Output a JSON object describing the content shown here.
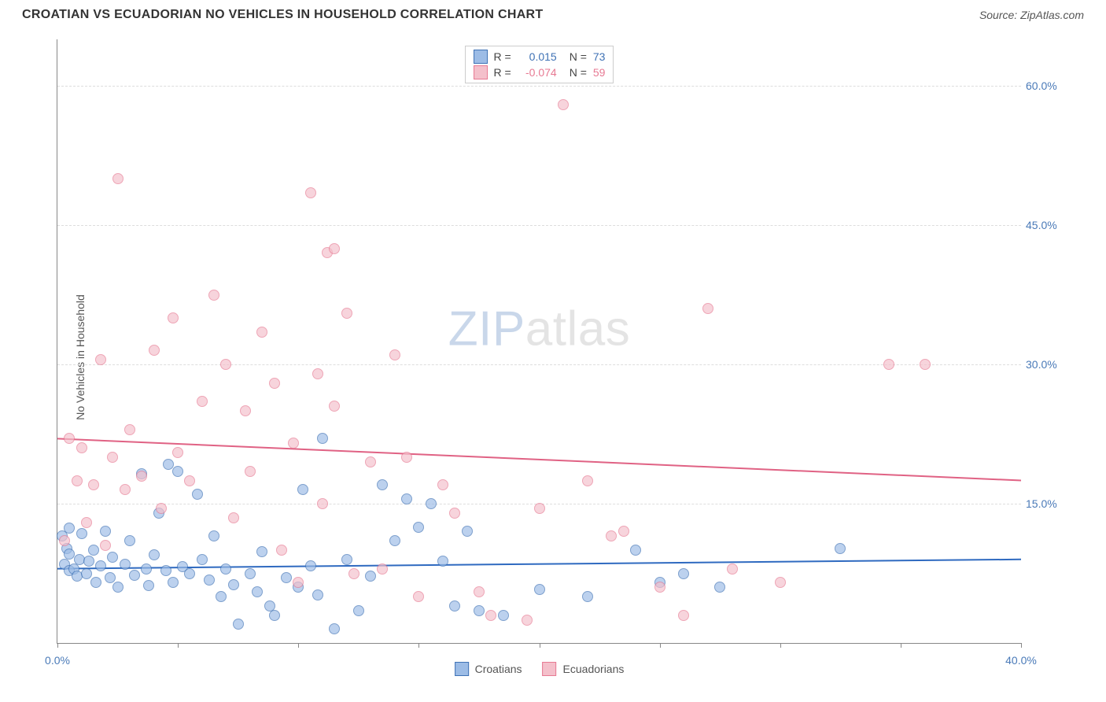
{
  "title": "CROATIAN VS ECUADORIAN NO VEHICLES IN HOUSEHOLD CORRELATION CHART",
  "source": "Source: ZipAtlas.com",
  "ylabel": "No Vehicles in Household",
  "watermark": {
    "zip": "ZIP",
    "atlas": "atlas"
  },
  "chart": {
    "type": "scatter",
    "background_color": "#ffffff",
    "grid_color": "#dddddd",
    "axis_color": "#888888",
    "tick_label_color": "#4a7ab8",
    "tick_fontsize": 14,
    "xlim": [
      0,
      40
    ],
    "ylim": [
      0,
      65
    ],
    "x_ticks": [
      0,
      5,
      10,
      15,
      20,
      25,
      30,
      35,
      40
    ],
    "x_tick_labels": {
      "0": "0.0%",
      "40": "40.0%"
    },
    "y_ticks": [
      15,
      30,
      45,
      60
    ],
    "y_tick_labels": {
      "15": "15.0%",
      "30": "30.0%",
      "45": "45.0%",
      "60": "60.0%"
    },
    "point_radius": 7,
    "point_opacity_fill": 0.32,
    "point_stroke_opacity": 0.9,
    "line_width": 2,
    "series": [
      {
        "name": "Croatians",
        "color_fill": "#9cbce6",
        "color_stroke": "#3f72b5",
        "trend": {
          "y_at_x0": 8.0,
          "y_at_xmax": 9.0,
          "color": "#2f6ac0"
        },
        "R_label": "R =",
        "R_value": "0.015",
        "N_label": "N =",
        "N_value": "73",
        "stat_value_color": "#3f72b5",
        "points": [
          [
            0.2,
            11.5
          ],
          [
            0.3,
            8.5
          ],
          [
            0.4,
            10.2
          ],
          [
            0.5,
            7.8
          ],
          [
            0.5,
            9.6
          ],
          [
            0.5,
            12.4
          ],
          [
            0.7,
            8.0
          ],
          [
            0.8,
            7.2
          ],
          [
            0.9,
            9.0
          ],
          [
            1.0,
            11.8
          ],
          [
            1.2,
            7.5
          ],
          [
            1.3,
            8.8
          ],
          [
            1.5,
            10.0
          ],
          [
            1.6,
            6.5
          ],
          [
            1.8,
            8.3
          ],
          [
            2.0,
            12.0
          ],
          [
            2.2,
            7.0
          ],
          [
            2.3,
            9.2
          ],
          [
            2.5,
            6.0
          ],
          [
            2.8,
            8.5
          ],
          [
            3.0,
            11.0
          ],
          [
            3.2,
            7.3
          ],
          [
            3.5,
            18.2
          ],
          [
            3.7,
            8.0
          ],
          [
            3.8,
            6.2
          ],
          [
            4.0,
            9.5
          ],
          [
            4.2,
            14.0
          ],
          [
            4.5,
            7.8
          ],
          [
            4.6,
            19.2
          ],
          [
            4.8,
            6.5
          ],
          [
            5.0,
            18.5
          ],
          [
            5.2,
            8.2
          ],
          [
            5.5,
            7.5
          ],
          [
            5.8,
            16.0
          ],
          [
            6.0,
            9.0
          ],
          [
            6.3,
            6.8
          ],
          [
            6.5,
            11.5
          ],
          [
            6.8,
            5.0
          ],
          [
            7.0,
            8.0
          ],
          [
            7.3,
            6.3
          ],
          [
            7.5,
            2.0
          ],
          [
            8.0,
            7.5
          ],
          [
            8.3,
            5.5
          ],
          [
            8.5,
            9.8
          ],
          [
            8.8,
            4.0
          ],
          [
            9.0,
            3.0
          ],
          [
            9.5,
            7.0
          ],
          [
            10.0,
            6.0
          ],
          [
            10.2,
            16.5
          ],
          [
            10.5,
            8.3
          ],
          [
            10.8,
            5.2
          ],
          [
            11.0,
            22.0
          ],
          [
            11.5,
            1.5
          ],
          [
            12.0,
            9.0
          ],
          [
            12.5,
            3.5
          ],
          [
            13.0,
            7.2
          ],
          [
            13.5,
            17.0
          ],
          [
            14.0,
            11.0
          ],
          [
            14.5,
            15.5
          ],
          [
            15.0,
            12.5
          ],
          [
            15.5,
            15.0
          ],
          [
            16.0,
            8.8
          ],
          [
            16.5,
            4.0
          ],
          [
            17.0,
            12.0
          ],
          [
            17.5,
            3.5
          ],
          [
            18.5,
            3.0
          ],
          [
            20.0,
            5.8
          ],
          [
            22.0,
            5.0
          ],
          [
            24.0,
            10.0
          ],
          [
            25.0,
            6.5
          ],
          [
            26.0,
            7.5
          ],
          [
            27.5,
            6.0
          ],
          [
            32.5,
            10.2
          ]
        ]
      },
      {
        "name": "Ecuadorians",
        "color_fill": "#f4c0cb",
        "color_stroke": "#e77a93",
        "trend": {
          "y_at_x0": 22.0,
          "y_at_xmax": 17.5,
          "color": "#e06284"
        },
        "R_label": "R =",
        "R_value": "-0.074",
        "N_label": "N =",
        "N_value": "59",
        "stat_value_color": "#e77a93",
        "points": [
          [
            0.3,
            11.0
          ],
          [
            0.5,
            22.0
          ],
          [
            0.8,
            17.5
          ],
          [
            1.0,
            21.0
          ],
          [
            1.2,
            13.0
          ],
          [
            1.5,
            17.0
          ],
          [
            1.8,
            30.5
          ],
          [
            2.0,
            10.5
          ],
          [
            2.3,
            20.0
          ],
          [
            2.5,
            50.0
          ],
          [
            2.8,
            16.5
          ],
          [
            3.0,
            23.0
          ],
          [
            3.5,
            18.0
          ],
          [
            4.0,
            31.5
          ],
          [
            4.3,
            14.5
          ],
          [
            4.8,
            35.0
          ],
          [
            5.0,
            20.5
          ],
          [
            5.5,
            17.5
          ],
          [
            6.0,
            26.0
          ],
          [
            6.5,
            37.5
          ],
          [
            7.0,
            30.0
          ],
          [
            7.3,
            13.5
          ],
          [
            7.8,
            25.0
          ],
          [
            8.0,
            18.5
          ],
          [
            8.5,
            33.5
          ],
          [
            9.0,
            28.0
          ],
          [
            9.3,
            10.0
          ],
          [
            9.8,
            21.5
          ],
          [
            10.0,
            6.5
          ],
          [
            10.5,
            48.5
          ],
          [
            10.8,
            29.0
          ],
          [
            11.0,
            15.0
          ],
          [
            11.2,
            42.0
          ],
          [
            11.5,
            42.5
          ],
          [
            11.5,
            25.5
          ],
          [
            12.0,
            35.5
          ],
          [
            12.3,
            7.5
          ],
          [
            13.0,
            19.5
          ],
          [
            13.5,
            8.0
          ],
          [
            14.0,
            31.0
          ],
          [
            14.5,
            20.0
          ],
          [
            15.0,
            5.0
          ],
          [
            16.0,
            17.0
          ],
          [
            16.5,
            14.0
          ],
          [
            17.5,
            5.5
          ],
          [
            18.0,
            3.0
          ],
          [
            19.5,
            2.5
          ],
          [
            20.0,
            14.5
          ],
          [
            21.0,
            58.0
          ],
          [
            22.0,
            17.5
          ],
          [
            23.0,
            11.5
          ],
          [
            23.5,
            12.0
          ],
          [
            25.0,
            6.0
          ],
          [
            26.0,
            3.0
          ],
          [
            27.0,
            36.0
          ],
          [
            28.0,
            8.0
          ],
          [
            30.0,
            6.5
          ],
          [
            34.5,
            30.0
          ],
          [
            36.0,
            30.0
          ]
        ]
      }
    ],
    "bottom_legend": [
      {
        "label": "Croatians",
        "fill": "#9cbce6",
        "stroke": "#3f72b5"
      },
      {
        "label": "Ecuadorians",
        "fill": "#f4c0cb",
        "stroke": "#e77a93"
      }
    ]
  }
}
